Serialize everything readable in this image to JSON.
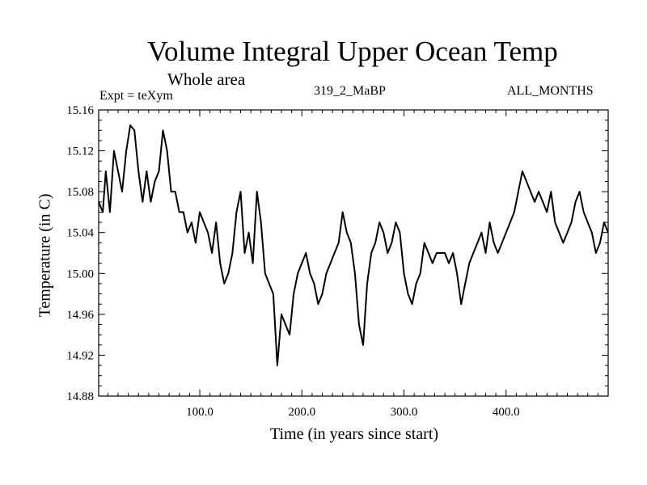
{
  "chart_data": {
    "type": "line",
    "title": "Volume Integral Upper Ocean Temp",
    "subtitle": "Whole area",
    "annotations": {
      "experiment": "Expt = teXym",
      "run": "319_2_MaBP",
      "months": "ALL_MONTHS"
    },
    "xlabel": "Time (in years since start)",
    "ylabel": "Temperature (in C)",
    "xlim": [
      1,
      500
    ],
    "ylim": [
      14.88,
      15.16
    ],
    "xticks": [
      100,
      200,
      300,
      400
    ],
    "xtick_labels": [
      "100.0",
      "200.0",
      "300.0",
      "400.0"
    ],
    "yticks": [
      14.88,
      14.92,
      14.96,
      15.0,
      15.04,
      15.08,
      15.12,
      15.16
    ],
    "ytick_labels": [
      "14.88",
      "14.92",
      "14.96",
      "15.00",
      "15.04",
      "15.08",
      "15.12",
      "15.16"
    ],
    "grid": false,
    "series": [
      {
        "x": [
          1,
          5,
          8,
          12,
          16,
          20,
          24,
          28,
          32,
          36,
          40,
          44,
          48,
          52,
          56,
          60,
          64,
          68,
          72,
          76,
          80,
          84,
          88,
          92,
          96,
          100,
          104,
          108,
          112,
          116,
          120,
          124,
          128,
          132,
          136,
          140,
          144,
          148,
          152,
          156,
          160,
          164,
          168,
          172,
          176,
          180,
          184,
          188,
          192,
          196,
          200,
          204,
          208,
          212,
          216,
          220,
          224,
          228,
          232,
          236,
          240,
          244,
          248,
          252,
          256,
          260,
          264,
          268,
          272,
          276,
          280,
          284,
          288,
          292,
          296,
          300,
          304,
          308,
          312,
          316,
          320,
          324,
          328,
          332,
          336,
          340,
          344,
          348,
          352,
          356,
          360,
          364,
          368,
          372,
          376,
          380,
          384,
          388,
          392,
          396,
          400,
          404,
          408,
          412,
          416,
          420,
          424,
          428,
          432,
          436,
          440,
          444,
          448,
          452,
          456,
          460,
          464,
          468,
          472,
          476,
          480,
          484,
          488,
          492,
          496,
          500
        ],
        "y": [
          15.07,
          15.06,
          15.1,
          15.06,
          15.12,
          15.1,
          15.08,
          15.12,
          15.145,
          15.14,
          15.1,
          15.07,
          15.1,
          15.07,
          15.09,
          15.1,
          15.14,
          15.12,
          15.08,
          15.08,
          15.06,
          15.06,
          15.04,
          15.05,
          15.03,
          15.06,
          15.05,
          15.04,
          15.02,
          15.05,
          15.01,
          14.99,
          15.0,
          15.02,
          15.06,
          15.08,
          15.02,
          15.04,
          15.01,
          15.08,
          15.05,
          15.0,
          14.99,
          14.98,
          14.91,
          14.96,
          14.95,
          14.94,
          14.98,
          15.0,
          15.01,
          15.02,
          15.0,
          14.99,
          14.97,
          14.98,
          15.0,
          15.01,
          15.02,
          15.03,
          15.06,
          15.04,
          15.03,
          15.0,
          14.95,
          14.93,
          14.99,
          15.02,
          15.03,
          15.05,
          15.04,
          15.02,
          15.03,
          15.05,
          15.04,
          15.0,
          14.98,
          14.97,
          14.99,
          15.0,
          15.03,
          15.02,
          15.01,
          15.02,
          15.02,
          15.02,
          15.01,
          15.02,
          15.0,
          14.97,
          14.99,
          15.01,
          15.02,
          15.03,
          15.04,
          15.02,
          15.05,
          15.03,
          15.02,
          15.03,
          15.04,
          15.05,
          15.06,
          15.08,
          15.1,
          15.09,
          15.08,
          15.07,
          15.08,
          15.07,
          15.06,
          15.08,
          15.05,
          15.04,
          15.03,
          15.04,
          15.05,
          15.07,
          15.08,
          15.06,
          15.05,
          15.04,
          15.02,
          15.03,
          15.05,
          15.04
        ],
        "color": "#000000"
      }
    ]
  }
}
